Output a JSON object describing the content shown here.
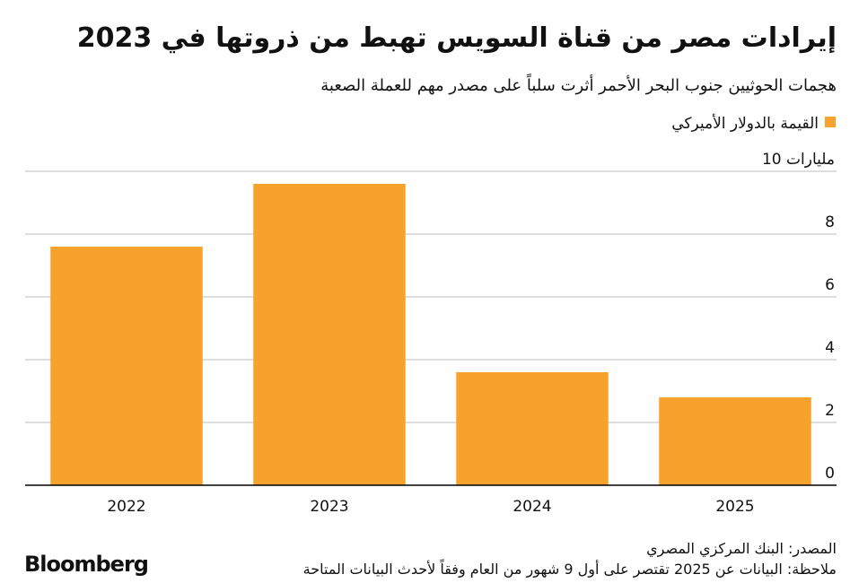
{
  "chart_data": {
    "type": "bar",
    "title": "إيرادات مصر من قناة السويس تهبط من ذروتها في 2023",
    "subtitle": "هجمات الحوثيين جنوب البحر الأحمر أثرت سلباً على مصدر مهم للعملة الصعبة",
    "categories": [
      "2022",
      "2023",
      "2024",
      "2025"
    ],
    "series": [
      {
        "name": "القيمة بالدولار الأميركي",
        "color": "#f7a22c",
        "values": [
          7.6,
          9.6,
          3.6,
          2.8
        ]
      }
    ],
    "ylim": [
      0,
      10
    ],
    "yticks": [
      0,
      2,
      4,
      6,
      8,
      {
        "value": 10,
        "label": "10 مليارات"
      }
    ],
    "grid": true,
    "legend": "top-right",
    "source": "المصدر: البنك المركزي المصري",
    "note": "ملاحظة: البيانات عن 2025 تقتصر على أول 9 شهور من العام وفقاً لأحدث البيانات المتاحة",
    "logo": "Bloomberg"
  }
}
